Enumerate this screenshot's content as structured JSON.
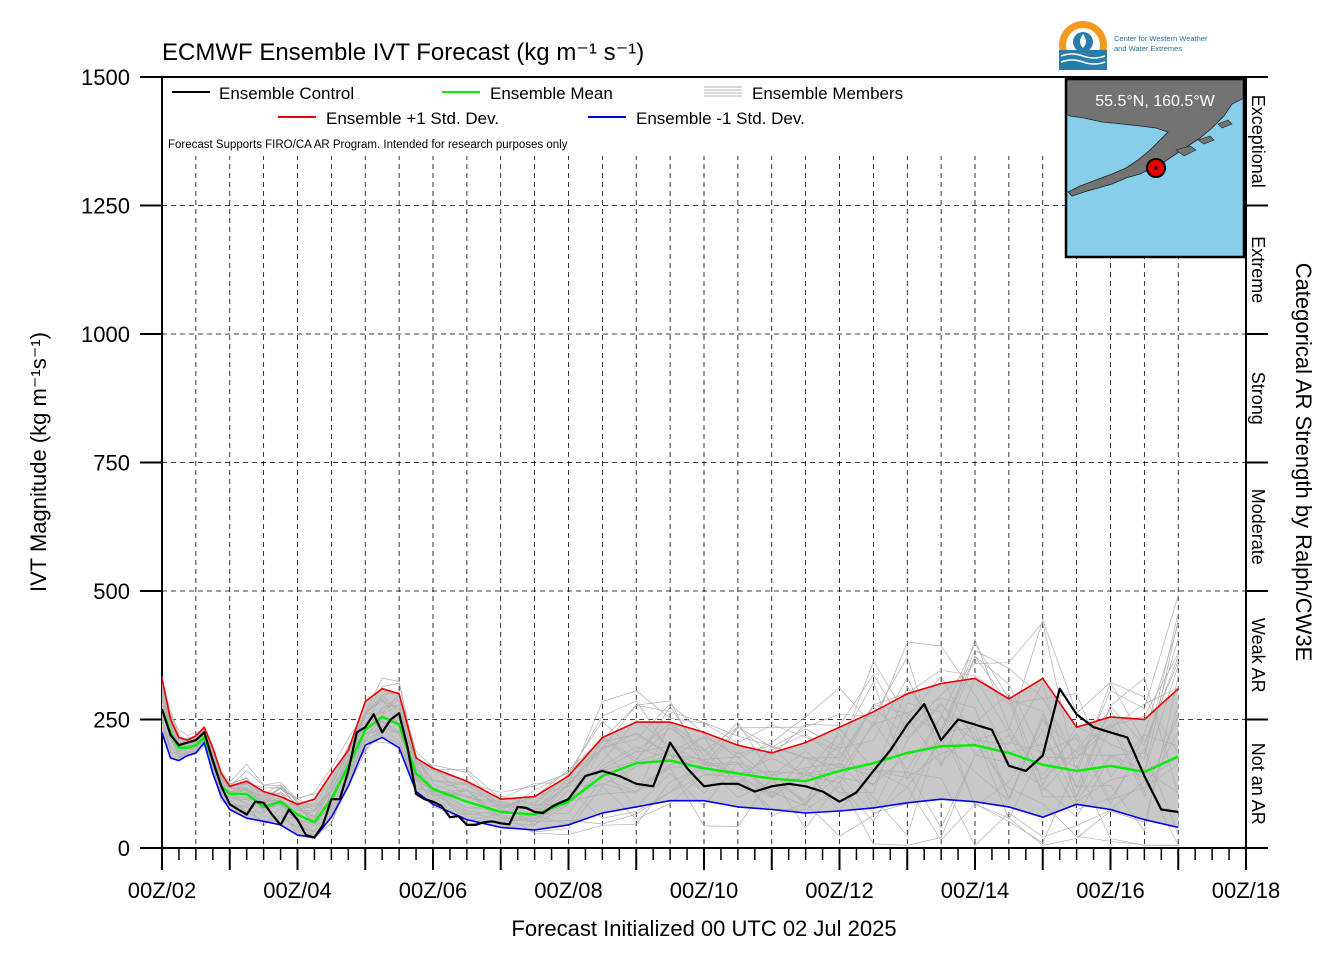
{
  "logo": {
    "org_line1": "Center for Western Weather",
    "org_line2": "and Water Extremes"
  },
  "chart_data": {
    "type": "line",
    "title": "ECMWF Ensemble IVT Forecast (kg m⁻¹ s⁻¹)",
    "xlabel": "Forecast Initialized 00 UTC 02 Jul 2025",
    "ylabel": "IVT Magnitude (kg m⁻¹s⁻¹)",
    "right_axis_label": "Categorical AR Strength by Ralph/CW3E",
    "note": "Forecast Supports FIRO/CA AR Program. Intended for research purposes only",
    "location_label": "55.5°N, 160.5°W",
    "xlim": [
      0,
      384
    ],
    "ylim": [
      0,
      1500
    ],
    "x_unit": "hours since 00 UTC 02 Jul 2025",
    "x_ticks": [
      0,
      48,
      96,
      144,
      192,
      240,
      288,
      336,
      384
    ],
    "x_tick_labels": [
      "00Z/02",
      "00Z/04",
      "00Z/06",
      "00Z/08",
      "00Z/10",
      "00Z/12",
      "00Z/14",
      "00Z/16",
      "00Z/18"
    ],
    "y_ticks": [
      0,
      250,
      500,
      750,
      1000,
      1250,
      1500
    ],
    "y_tick_labels": [
      "0",
      "250",
      "500",
      "750",
      "1000",
      "1250",
      "1500"
    ],
    "grid": true,
    "legend_position": "top-left",
    "categories_right": [
      {
        "label": "Not an AR",
        "from": 0,
        "to": 250
      },
      {
        "label": "Weak AR",
        "from": 250,
        "to": 500
      },
      {
        "label": "Moderate",
        "from": 500,
        "to": 750
      },
      {
        "label": "Strong",
        "from": 750,
        "to": 1000
      },
      {
        "label": "Extreme",
        "from": 1000,
        "to": 1250
      },
      {
        "label": "Exceptional",
        "from": 1250,
        "to": 1500
      }
    ],
    "colors": {
      "control": "#000000",
      "mean": "#00ee00",
      "plus_std": "#ee0000",
      "minus_std": "#0000ee",
      "members": "#b0b0b0",
      "spread_fill": "#c8c8c8",
      "map_ocean": "#87ceeb",
      "map_land": "#737373",
      "marker": "#ee0000"
    },
    "series": [
      {
        "name": "Ensemble Control",
        "x": [
          0,
          3,
          6,
          9,
          12,
          15,
          18,
          21,
          24,
          27,
          30,
          33,
          36,
          39,
          42,
          45,
          48,
          51,
          54,
          57,
          60,
          63,
          66,
          69,
          72,
          75,
          78,
          81,
          84,
          87,
          90,
          93,
          96,
          99,
          102,
          105,
          108,
          111,
          114,
          117,
          120,
          123,
          126,
          129,
          132,
          135,
          138,
          141,
          144,
          150,
          156,
          162,
          168,
          174,
          180,
          186,
          192,
          198,
          204,
          210,
          216,
          222,
          228,
          234,
          240,
          246,
          252,
          258,
          264,
          270,
          276,
          282,
          288,
          294,
          300,
          306,
          312,
          318,
          324,
          330,
          336,
          342,
          348,
          354,
          360
        ],
        "values": [
          270,
          220,
          200,
          205,
          210,
          225,
          170,
          120,
          85,
          75,
          65,
          90,
          88,
          65,
          45,
          75,
          55,
          25,
          20,
          45,
          95,
          95,
          150,
          225,
          235,
          260,
          225,
          250,
          262,
          195,
          105,
          95,
          90,
          82,
          60,
          62,
          45,
          45,
          50,
          52,
          48,
          46,
          80,
          78,
          70,
          68,
          80,
          88,
          95,
          140,
          150,
          140,
          125,
          120,
          205,
          155,
          120,
          125,
          125,
          110,
          120,
          125,
          120,
          110,
          90,
          108,
          150,
          190,
          240,
          280,
          210,
          250,
          240,
          230,
          160,
          150,
          180,
          310,
          260,
          235,
          225,
          215,
          140,
          75,
          70
        ]
      },
      {
        "name": "Ensemble Mean",
        "x": [
          0,
          3,
          6,
          9,
          12,
          15,
          18,
          21,
          24,
          30,
          36,
          42,
          48,
          54,
          60,
          66,
          72,
          78,
          84,
          90,
          96,
          108,
          120,
          132,
          144,
          156,
          168,
          180,
          192,
          204,
          216,
          228,
          240,
          252,
          264,
          276,
          288,
          300,
          312,
          324,
          336,
          348,
          360
        ],
        "values": [
          270,
          225,
          195,
          195,
          200,
          215,
          170,
          120,
          105,
          105,
          80,
          90,
          65,
          50,
          95,
          160,
          230,
          255,
          240,
          145,
          115,
          90,
          70,
          65,
          90,
          140,
          165,
          170,
          155,
          145,
          135,
          130,
          150,
          165,
          185,
          198,
          200,
          185,
          162,
          150,
          160,
          148,
          178
        ]
      },
      {
        "name": "Ensemble +1 Std. Dev.",
        "x": [
          0,
          3,
          6,
          9,
          12,
          15,
          18,
          21,
          24,
          30,
          36,
          42,
          48,
          54,
          60,
          66,
          72,
          78,
          84,
          90,
          96,
          108,
          120,
          132,
          144,
          156,
          168,
          180,
          192,
          204,
          216,
          228,
          240,
          252,
          264,
          276,
          288,
          300,
          312,
          324,
          336,
          348,
          360
        ],
        "values": [
          330,
          250,
          215,
          210,
          218,
          235,
          195,
          145,
          120,
          130,
          110,
          100,
          85,
          95,
          145,
          190,
          285,
          310,
          300,
          175,
          155,
          130,
          95,
          100,
          140,
          215,
          245,
          245,
          225,
          200,
          185,
          205,
          235,
          265,
          300,
          320,
          330,
          290,
          330,
          235,
          255,
          250,
          310
        ]
      },
      {
        "name": "Ensemble -1 Std. Dev.",
        "x": [
          0,
          3,
          6,
          9,
          12,
          15,
          18,
          21,
          24,
          30,
          36,
          42,
          48,
          54,
          60,
          66,
          72,
          78,
          84,
          90,
          96,
          108,
          120,
          132,
          144,
          156,
          168,
          180,
          192,
          204,
          216,
          228,
          240,
          252,
          264,
          276,
          288,
          300,
          312,
          324,
          336,
          348,
          360
        ],
        "values": [
          225,
          175,
          170,
          180,
          185,
          205,
          145,
          100,
          75,
          58,
          52,
          45,
          25,
          20,
          60,
          120,
          200,
          215,
          195,
          110,
          85,
          55,
          40,
          35,
          45,
          68,
          80,
          92,
          92,
          80,
          75,
          68,
          72,
          78,
          88,
          95,
          90,
          80,
          60,
          85,
          75,
          55,
          40
        ]
      }
    ],
    "members_name": "Ensemble Members"
  }
}
